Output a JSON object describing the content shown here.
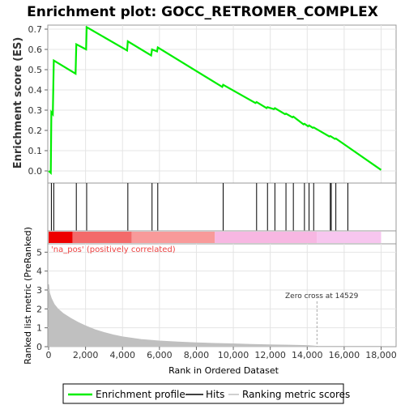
{
  "colors": {
    "es_line": "#00ee00",
    "hit": "#000000",
    "metric_fill": "#c0c0c0",
    "ann_red": "#ee4444",
    "bar_segments": [
      "#ee0000",
      "#f36a6a",
      "#f89a9a",
      "#f7b7e2",
      "#f7c6ef"
    ]
  },
  "chart_data": [
    {
      "type": "line",
      "title": "Enrichment plot: GOCC_RETROMER_COMPLEX",
      "ylabel": "Enrichment score (ES)",
      "ylim": [
        -0.03,
        0.75
      ],
      "yticks": [
        "0.0",
        "0.1",
        "0.2",
        "0.3",
        "0.4",
        "0.5",
        "0.6",
        "0.7"
      ],
      "xlim": [
        0,
        18900
      ],
      "grid": true,
      "series": [
        {
          "name": "Enrichment profile",
          "x": [
            0,
            120,
            150,
            230,
            280,
            1460,
            1500,
            2030,
            2060,
            4250,
            4290,
            5550,
            5600,
            5870,
            5910,
            9400,
            9450,
            11200,
            11260,
            11800,
            11850,
            12200,
            12250,
            12800,
            12850,
            13200,
            13250,
            13800,
            13850,
            14050,
            14100,
            14300,
            14350,
            15200,
            15250,
            15500,
            15550,
            18000
          ],
          "y": [
            0.0,
            -0.01,
            0.29,
            0.28,
            0.545,
            0.48,
            0.625,
            0.6,
            0.71,
            0.595,
            0.64,
            0.57,
            0.6,
            0.59,
            0.61,
            0.415,
            0.425,
            0.335,
            0.34,
            0.31,
            0.315,
            0.305,
            0.31,
            0.28,
            0.283,
            0.265,
            0.268,
            0.23,
            0.233,
            0.22,
            0.225,
            0.213,
            0.215,
            0.17,
            0.172,
            0.158,
            0.16,
            0.005
          ]
        }
      ]
    },
    {
      "type": "scatter",
      "label": "Hits",
      "hits_x": [
        150,
        280,
        1500,
        2060,
        4290,
        5600,
        5910,
        9450,
        11260,
        11850,
        12250,
        12850,
        13250,
        13850,
        14100,
        14350,
        15250,
        15300,
        15550,
        16200
      ],
      "xlim": [
        0,
        18900
      ]
    },
    {
      "type": "area",
      "xlabel": "Rank in Ordered Dataset",
      "ylabel": "Ranked list metric (PreRanked)",
      "xlim": [
        0,
        18900
      ],
      "ylim": [
        0,
        5.3
      ],
      "xticks": [
        "0",
        "2,000",
        "4,000",
        "6,000",
        "8,000",
        "10,000",
        "12,000",
        "14,000",
        "16,000",
        "18,000"
      ],
      "yticks": [
        "0",
        "1",
        "2",
        "3",
        "4",
        "5"
      ],
      "x": [
        0,
        50,
        150,
        300,
        500,
        800,
        1200,
        1600,
        2000,
        2500,
        3000,
        3500,
        4000,
        5000,
        6000,
        7000,
        8000,
        9000,
        10000,
        11000,
        12000,
        13000,
        14000,
        14529,
        15000,
        16000,
        17000,
        18000
      ],
      "y": [
        3.3,
        2.85,
        2.55,
        2.25,
        2.0,
        1.75,
        1.5,
        1.28,
        1.1,
        0.9,
        0.75,
        0.62,
        0.52,
        0.38,
        0.3,
        0.25,
        0.2,
        0.17,
        0.15,
        0.12,
        0.1,
        0.08,
        0.06,
        0.0,
        -0.02,
        -0.05,
        -0.08,
        -0.1
      ],
      "annotation_pos": "'na_pos' (positively correlated)",
      "zero_cross_label": "Zero cross at 14529",
      "zero_cross_x": 14529
    }
  ],
  "legend": {
    "items": [
      {
        "label": "Enrichment profile",
        "color": "#00ee00"
      },
      {
        "label": "Hits",
        "color": "#000000"
      },
      {
        "label": "Ranking metric scores",
        "color": "#c0c0c0"
      }
    ]
  }
}
